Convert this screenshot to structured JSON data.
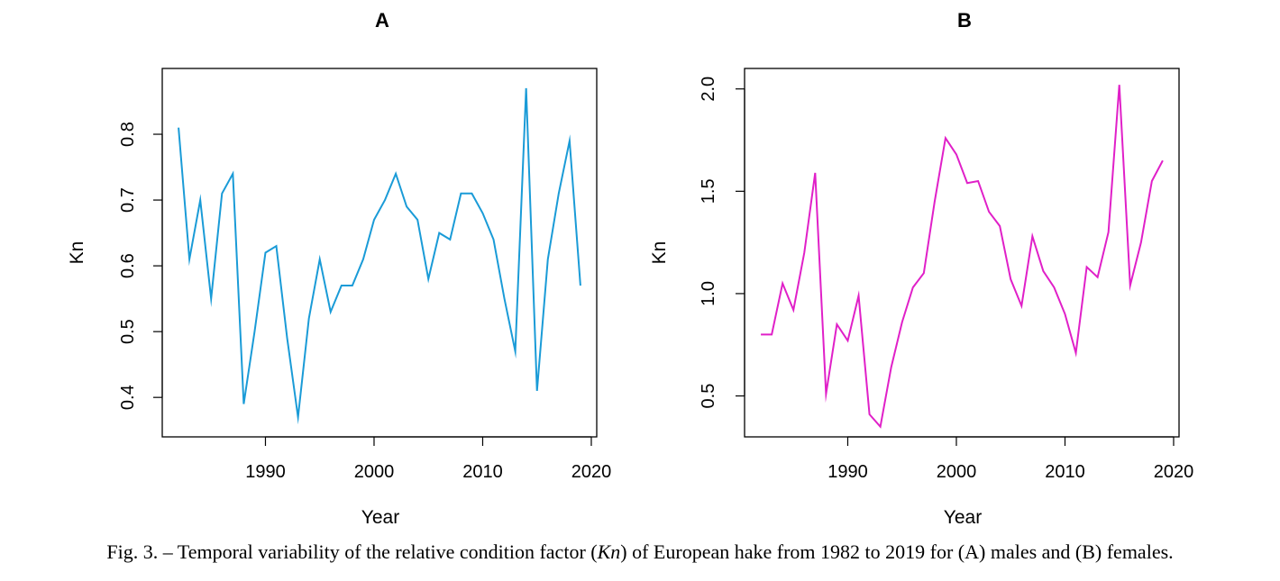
{
  "chart_data": [
    {
      "type": "line",
      "title": "A",
      "xlabel": "Year",
      "ylabel": "Kn",
      "xlim": [
        1980.5,
        2020.5
      ],
      "ylim": [
        0.34,
        0.9
      ],
      "xticks": [
        1990,
        2000,
        2010,
        2020
      ],
      "yticks": [
        0.4,
        0.5,
        0.6,
        0.7,
        0.8
      ],
      "grid": false,
      "color": "#1a9bd7",
      "series": [
        {
          "x": [
            1982,
            1983,
            1984,
            1985,
            1986,
            1987,
            1988,
            1989,
            1990,
            1991,
            1992,
            1993,
            1994,
            1995,
            1996,
            1997,
            1998,
            1999,
            2000,
            2001,
            2002,
            2003,
            2004,
            2005,
            2006,
            2007,
            2008,
            2009,
            2010,
            2011,
            2012,
            2013,
            2014,
            2015,
            2016,
            2017,
            2018,
            2019
          ],
          "values": [
            0.81,
            0.61,
            0.7,
            0.55,
            0.71,
            0.74,
            0.39,
            0.5,
            0.62,
            0.63,
            0.49,
            0.37,
            0.52,
            0.61,
            0.53,
            0.57,
            0.57,
            0.61,
            0.67,
            0.7,
            0.74,
            0.69,
            0.67,
            0.58,
            0.65,
            0.64,
            0.71,
            0.71,
            0.68,
            0.64,
            0.55,
            0.47,
            0.87,
            0.41,
            0.61,
            0.71,
            0.79,
            0.57
          ]
        }
      ]
    },
    {
      "type": "line",
      "title": "B",
      "xlabel": "Year",
      "ylabel": "Kn",
      "xlim": [
        1980.5,
        2020.5
      ],
      "ylim": [
        0.3,
        2.1
      ],
      "xticks": [
        1990,
        2000,
        2010,
        2020
      ],
      "yticks": [
        "0.5",
        "1.0",
        "1.5",
        "2.0"
      ],
      "grid": false,
      "color": "#e020c8",
      "series": [
        {
          "x": [
            1982,
            1983,
            1984,
            1985,
            1986,
            1987,
            1988,
            1989,
            1990,
            1991,
            1992,
            1993,
            1994,
            1995,
            1996,
            1997,
            1998,
            1999,
            2000,
            2001,
            2002,
            2003,
            2004,
            2005,
            2006,
            2007,
            2008,
            2009,
            2010,
            2011,
            2012,
            2013,
            2014,
            2015,
            2016,
            2017,
            2018,
            2019
          ],
          "values": [
            0.8,
            0.8,
            1.05,
            0.92,
            1.2,
            1.59,
            0.51,
            0.85,
            0.77,
            0.99,
            0.41,
            0.35,
            0.64,
            0.86,
            1.03,
            1.1,
            1.45,
            1.76,
            1.68,
            1.54,
            1.55,
            1.4,
            1.33,
            1.07,
            0.94,
            1.28,
            1.11,
            1.03,
            0.9,
            0.71,
            1.13,
            1.08,
            1.3,
            2.02,
            1.04,
            1.25,
            1.55,
            1.65
          ]
        }
      ]
    }
  ],
  "caption": {
    "prefix": "Fig. 3. – Temporal variability of the relative condition factor (",
    "italic": "Kn",
    "suffix": ") of European hake from 1982 to 2019 for (A) males and (B) females."
  }
}
